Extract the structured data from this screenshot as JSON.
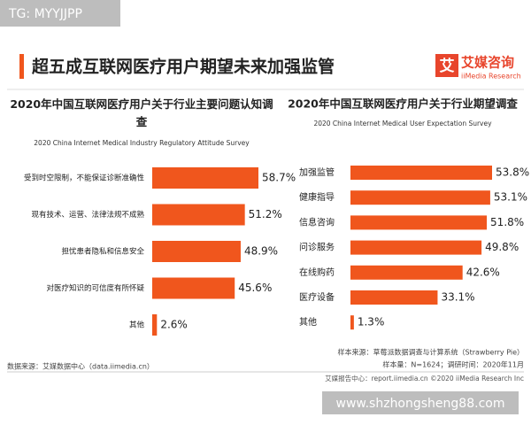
{
  "watermark_top": "TG: MYYJJPP",
  "headline": "超五成互联网医疗用户期望未来加强监管",
  "logo": {
    "mark": "艾",
    "name": "艾媒咨询",
    "english": "iiMedia Research"
  },
  "chart_data": [
    {
      "type": "bar",
      "orientation": "horizontal",
      "title": "2020年中国互联网医疗用户关于行业主要问题认知调查",
      "subtitle": "2020 China Internet Medical Industry Regulatory Attitude Survey",
      "categories": [
        "受到时空限制，不能保证诊断准确性",
        "现有技术、运营、法律法规不成熟",
        "担忧患者隐私和信息安全",
        "对医疗知识的可信度有所怀疑",
        "其他"
      ],
      "values": [
        58.7,
        51.2,
        48.9,
        45.6,
        2.6
      ],
      "value_labels": [
        "58.7%",
        "51.2%",
        "48.9%",
        "45.6%",
        "2.6%"
      ],
      "color": "#f0561d",
      "source": "数据来源：艾媒数据中心（data.iimedia.cn）"
    },
    {
      "type": "bar",
      "orientation": "horizontal",
      "title": "2020年中国互联网医疗用户关于行业期望调查",
      "subtitle": "2020 China Internet Medical User Expectation Survey",
      "categories": [
        "加强监管",
        "健康指导",
        "信息咨询",
        "问诊服务",
        "在线购药",
        "医疗设备",
        "其他"
      ],
      "values": [
        53.8,
        53.1,
        51.8,
        49.8,
        42.6,
        33.1,
        1.3
      ],
      "value_labels": [
        "53.8%",
        "53.1%",
        "51.8%",
        "49.8%",
        "42.6%",
        "33.1%",
        "1.3%"
      ],
      "color": "#f0561d",
      "sample_source": "样本来源：草莓派数据调查与计算系统（Strawberry Pie）",
      "sample_size": "样本量：N=1624；调研时间：2020年11月"
    }
  ],
  "footer": "艾媒报告中心：report.iimedia.cn  ©2020  iiMedia Research  Inc",
  "watermark_bottom": "www.shzhongsheng88.com"
}
